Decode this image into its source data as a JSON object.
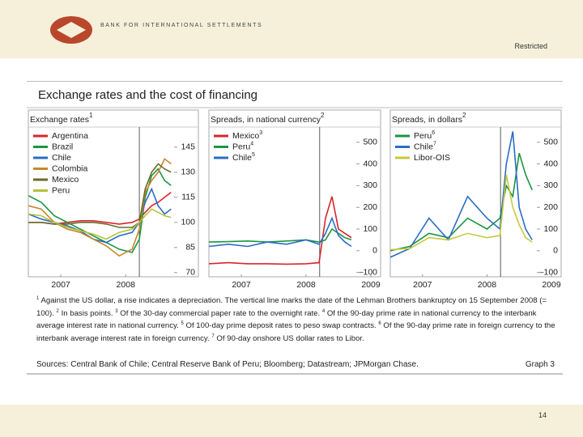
{
  "header": {
    "org": "BANK FOR INTERNATIONAL SETTLEMENTS",
    "classification": "Restricted"
  },
  "figure": {
    "title": "Exchange rates and the cost of financing",
    "footnotes": [
      {
        "mark": "1",
        "text": "Against the US dollar, a rise indicates a depreciation. The vertical line marks the date of the Lehman Brothers bankruptcy on 15 September 2008 (= 100)."
      },
      {
        "mark": "2",
        "text": "In basis points."
      },
      {
        "mark": "3",
        "text": "Of the 30-day commercial paper rate to the overnight rate."
      },
      {
        "mark": "4",
        "text": "Of the 90-day prime rate in national currency to the interbank average interest rate in national currency."
      },
      {
        "mark": "5",
        "text": "Of 100-day prime deposit rates to peso swap contracts."
      },
      {
        "mark": "6",
        "text": "Of the 90-day prime rate in foreign currency to the interbank average interest rate in foreign currency."
      },
      {
        "mark": "7",
        "text": "Of 90-day onshore US dollar rates to Libor."
      }
    ],
    "sources": "Sources: Central Bank of Chile; Central Reserve Bank of Peru; Bloomberg; Datastream; JPMorgan Chase.",
    "graph_label": "Graph 3"
  },
  "chart_data": [
    {
      "type": "line",
      "title": "Exchange rates",
      "title_note": "1",
      "legend": "upper left",
      "x": [
        2007.0,
        2007.2,
        2007.4,
        2007.6,
        2007.8,
        2008.0,
        2008.2,
        2008.4,
        2008.6,
        2008.71,
        2008.8,
        2008.9,
        2009.0,
        2009.1,
        2009.2
      ],
      "xlim": [
        2007.0,
        2009.62
      ],
      "xticks": [
        {
          "value": 2007.5,
          "label": "2007"
        },
        {
          "value": 2008.5,
          "label": "2008"
        }
      ],
      "ylim": [
        67.5,
        157
      ],
      "yticks": [
        70,
        85,
        100,
        115,
        130,
        145
      ],
      "vline": 2008.71,
      "series": [
        {
          "name": "Argentina",
          "color": "#d7262b",
          "values": [
            100,
            100,
            99,
            100,
            101,
            101,
            100,
            99,
            100,
            102,
            106,
            110,
            112,
            115,
            118
          ]
        },
        {
          "name": "Brazil",
          "color": "#1a9641",
          "values": [
            116,
            112,
            104,
            100,
            96,
            92,
            88,
            84,
            82,
            90,
            115,
            128,
            132,
            125,
            122
          ]
        },
        {
          "name": "Chile",
          "color": "#2b6cc4",
          "values": [
            105,
            102,
            100,
            98,
            95,
            90,
            88,
            92,
            94,
            100,
            112,
            120,
            110,
            105,
            108
          ]
        },
        {
          "name": "Colombia",
          "color": "#c8862a",
          "values": [
            110,
            108,
            100,
            96,
            94,
            90,
            86,
            80,
            84,
            96,
            118,
            125,
            130,
            138,
            135
          ]
        },
        {
          "name": "Mexico",
          "color": "#6b6b2a",
          "values": [
            100,
            100,
            99,
            99,
            100,
            100,
            99,
            97,
            97,
            100,
            120,
            130,
            135,
            132,
            130
          ]
        },
        {
          "name": "Peru",
          "color": "#b5c23a",
          "values": [
            105,
            104,
            100,
            97,
            95,
            93,
            90,
            94,
            96,
            100,
            104,
            108,
            106,
            104,
            103
          ]
        }
      ]
    },
    {
      "type": "line",
      "title": "Spreads, in national currency",
      "title_note": "2",
      "legend": "upper left",
      "x": [
        2007.0,
        2007.3,
        2007.6,
        2007.9,
        2008.2,
        2008.5,
        2008.7,
        2008.8,
        2008.9,
        2009.0,
        2009.1,
        2009.2
      ],
      "xlim": [
        2007.0,
        2009.65
      ],
      "xticks": [
        {
          "value": 2007.5,
          "label": "2007"
        },
        {
          "value": 2008.5,
          "label": "2008"
        },
        {
          "value": 2009.5,
          "label": "2009"
        }
      ],
      "ylim": [
        -120,
        570
      ],
      "yticks": [
        {
          "value": -100,
          "label": "–100"
        },
        0,
        100,
        200,
        300,
        400,
        500
      ],
      "vline": 2008.71,
      "series": [
        {
          "name": "Mexico",
          "note": "3",
          "color": "#d7262b",
          "values": [
            -60,
            -55,
            -60,
            -60,
            -62,
            -60,
            -55,
            150,
            250,
            100,
            80,
            60
          ]
        },
        {
          "name": "Peru",
          "note": "4",
          "color": "#1a9641",
          "values": [
            40,
            42,
            45,
            40,
            45,
            50,
            40,
            50,
            100,
            80,
            60,
            50
          ]
        },
        {
          "name": "Chile",
          "note": "5",
          "color": "#2b6cc4",
          "values": [
            20,
            30,
            20,
            40,
            30,
            50,
            30,
            80,
            150,
            70,
            40,
            20
          ]
        }
      ]
    },
    {
      "type": "line",
      "title": "Spreads, in dollars",
      "title_note": "2",
      "legend": "upper left",
      "x": [
        2007.0,
        2007.3,
        2007.6,
        2007.9,
        2008.2,
        2008.5,
        2008.7,
        2008.8,
        2008.9,
        2009.0,
        2009.1,
        2009.2
      ],
      "xlim": [
        2007.0,
        2009.65
      ],
      "xticks": [
        {
          "value": 2007.5,
          "label": "2007"
        },
        {
          "value": 2008.5,
          "label": "2008"
        },
        {
          "value": 2009.5,
          "label": "2009"
        }
      ],
      "ylim": [
        -120,
        570
      ],
      "yticks": [
        {
          "value": -100,
          "label": "–100"
        },
        0,
        100,
        200,
        300,
        400,
        500
      ],
      "vline": 2008.71,
      "series": [
        {
          "name": "Peru",
          "note": "6",
          "color": "#1a9641",
          "values": [
            0,
            20,
            80,
            60,
            150,
            100,
            150,
            300,
            250,
            450,
            350,
            280
          ]
        },
        {
          "name": "Chile",
          "note": "7",
          "color": "#2b6cc4",
          "values": [
            -30,
            10,
            150,
            50,
            250,
            150,
            100,
            400,
            550,
            200,
            100,
            50
          ]
        },
        {
          "name": "Libor-OIS",
          "color": "#c9c83b",
          "values": [
            5,
            10,
            60,
            50,
            80,
            60,
            70,
            350,
            200,
            120,
            60,
            40
          ]
        }
      ]
    }
  ],
  "footer": {
    "page": "14"
  }
}
